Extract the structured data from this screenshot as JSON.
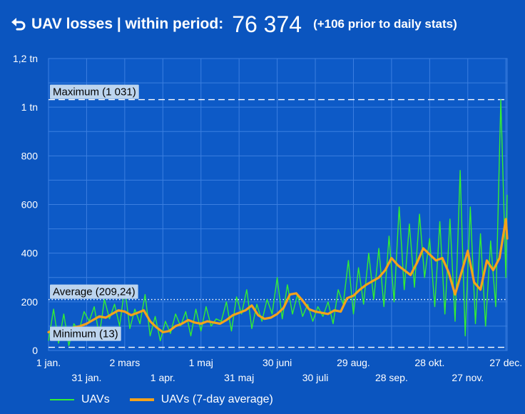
{
  "header": {
    "title": "UAV losses | within period:",
    "total": "76 374",
    "prior_note": "(+106 prior to daily stats)"
  },
  "colors": {
    "background": "#0b55bf",
    "plot_background": "#0d5ac7",
    "grid": "#3b7fe0",
    "daily_line": "#33ee33",
    "avg_line": "#f4a21b",
    "label_box": "#bcd4ee"
  },
  "chart_data": {
    "type": "line",
    "title": "UAV losses | within period",
    "xlabel": "",
    "ylabel": "",
    "day_count": 362,
    "ylim": [
      0,
      1200
    ],
    "y_ticks": [
      {
        "value": 0,
        "label": "0"
      },
      {
        "value": 200,
        "label": "200"
      },
      {
        "value": 400,
        "label": "400"
      },
      {
        "value": 600,
        "label": "600"
      },
      {
        "value": 800,
        "label": "800"
      },
      {
        "value": 1000,
        "label": "1 tn"
      },
      {
        "value": 1200,
        "label": "1,2 tn"
      }
    ],
    "x_ticks_top": [
      {
        "day": 0,
        "label": "1 jan."
      },
      {
        "day": 60,
        "label": "2 mars"
      },
      {
        "day": 120,
        "label": "1 maj"
      },
      {
        "day": 180,
        "label": "30 juni"
      },
      {
        "day": 240,
        "label": "29 aug."
      },
      {
        "day": 300,
        "label": "28 okt."
      },
      {
        "day": 360,
        "label": "27 dec."
      }
    ],
    "x_ticks_bottom": [
      {
        "day": 30,
        "label": "31 jan."
      },
      {
        "day": 90,
        "label": "1 apr."
      },
      {
        "day": 150,
        "label": "31 maj"
      },
      {
        "day": 210,
        "label": "30 juli"
      },
      {
        "day": 270,
        "label": "28 sep."
      },
      {
        "day": 330,
        "label": "27 nov."
      }
    ],
    "reference_lines": [
      {
        "name": "maximum",
        "label": "Maximum (1 031)",
        "value": 1031,
        "style": "dashed"
      },
      {
        "name": "average",
        "label": "Average (209,24)",
        "value": 209.24,
        "style": "dotted"
      },
      {
        "name": "minimum",
        "label": "Minimum (13)",
        "value": 13,
        "style": "dashed"
      }
    ],
    "series": [
      {
        "name": "UAVs",
        "key": "daily",
        "note": "daily values approximated (one per ~4 days)",
        "x": [
          0,
          4,
          8,
          12,
          16,
          20,
          24,
          28,
          32,
          36,
          40,
          44,
          48,
          52,
          56,
          60,
          64,
          68,
          72,
          76,
          80,
          84,
          88,
          92,
          96,
          100,
          104,
          108,
          112,
          116,
          120,
          124,
          128,
          132,
          136,
          140,
          144,
          148,
          152,
          156,
          160,
          164,
          168,
          172,
          176,
          180,
          184,
          188,
          192,
          196,
          200,
          204,
          208,
          212,
          216,
          220,
          224,
          228,
          232,
          236,
          240,
          244,
          248,
          252,
          256,
          260,
          264,
          268,
          272,
          276,
          280,
          284,
          288,
          292,
          296,
          300,
          304,
          308,
          312,
          316,
          320,
          324,
          328,
          332,
          336,
          340,
          344,
          348,
          352,
          356,
          360,
          361
        ],
        "values": [
          40,
          170,
          30,
          150,
          20,
          110,
          80,
          160,
          120,
          180,
          60,
          210,
          130,
          190,
          100,
          260,
          90,
          170,
          110,
          230,
          60,
          140,
          40,
          120,
          70,
          150,
          100,
          160,
          60,
          170,
          80,
          180,
          100,
          130,
          120,
          200,
          80,
          220,
          150,
          250,
          90,
          190,
          120,
          210,
          150,
          300,
          130,
          270,
          150,
          230,
          140,
          190,
          120,
          180,
          140,
          200,
          110,
          250,
          190,
          370,
          150,
          340,
          190,
          400,
          210,
          420,
          180,
          470,
          200,
          590,
          250,
          520,
          260,
          560,
          300,
          460,
          180,
          530,
          150,
          540,
          120,
          740,
          60,
          590,
          110,
          480,
          100,
          450,
          180,
          1031,
          300,
          640
        ]
      },
      {
        "name": "UAVs (7-day average)",
        "key": "avg",
        "x": [
          0,
          5,
          10,
          15,
          20,
          25,
          30,
          35,
          40,
          45,
          50,
          55,
          60,
          65,
          70,
          75,
          80,
          85,
          90,
          95,
          100,
          105,
          110,
          115,
          120,
          125,
          130,
          135,
          140,
          145,
          150,
          155,
          160,
          165,
          170,
          175,
          180,
          185,
          190,
          195,
          200,
          205,
          210,
          215,
          220,
          225,
          230,
          235,
          240,
          245,
          250,
          255,
          260,
          265,
          270,
          275,
          280,
          285,
          290,
          295,
          300,
          305,
          310,
          315,
          320,
          325,
          330,
          335,
          340,
          345,
          350,
          355,
          360,
          361
        ],
        "values": [
          75,
          85,
          90,
          85,
          95,
          100,
          110,
          125,
          140,
          135,
          150,
          165,
          160,
          145,
          155,
          165,
          120,
          95,
          75,
          80,
          100,
          110,
          125,
          115,
          110,
          120,
          115,
          110,
          125,
          145,
          155,
          165,
          185,
          145,
          130,
          135,
          150,
          175,
          230,
          235,
          205,
          170,
          160,
          155,
          150,
          165,
          160,
          215,
          225,
          250,
          270,
          285,
          300,
          330,
          380,
          350,
          330,
          310,
          360,
          420,
          395,
          370,
          380,
          320,
          230,
          320,
          410,
          280,
          250,
          370,
          330,
          380,
          540,
          460
        ]
      }
    ]
  },
  "legend": [
    {
      "label": "UAVs",
      "key": "daily"
    },
    {
      "label": "UAVs (7-day average)",
      "key": "avg"
    }
  ]
}
